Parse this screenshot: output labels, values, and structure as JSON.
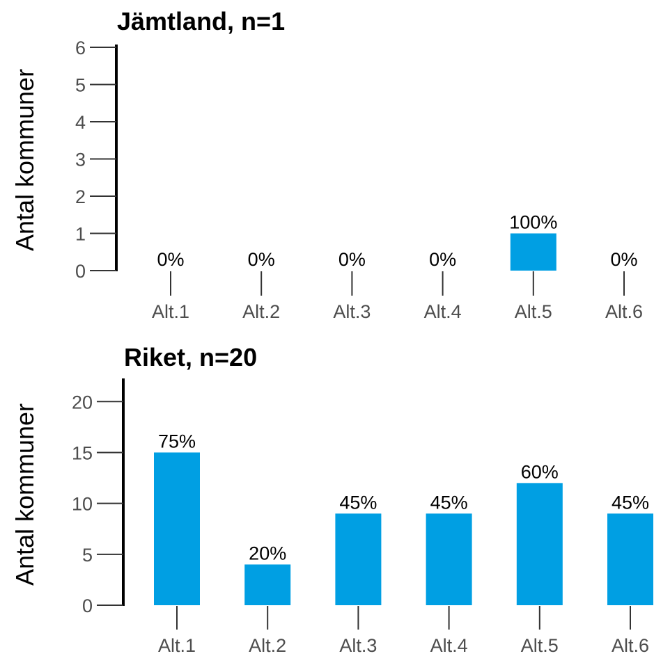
{
  "chart_data": [
    {
      "type": "bar",
      "title": "Jämtland, n=1",
      "ylabel": "Antal kommuner",
      "xlabel": "",
      "categories": [
        "Alt.1",
        "Alt.2",
        "Alt.3",
        "Alt.4",
        "Alt.5",
        "Alt.6"
      ],
      "values": [
        0,
        0,
        0,
        0,
        1,
        0
      ],
      "data_labels": [
        "0%",
        "0%",
        "0%",
        "0%",
        "100%",
        "0%"
      ],
      "ylim": [
        0,
        6
      ],
      "yticks": [
        0,
        1,
        2,
        3,
        4,
        5,
        6
      ],
      "grid": false,
      "legend": "none",
      "bar_color": "#009fe3"
    },
    {
      "type": "bar",
      "title": "Riket, n=20",
      "ylabel": "Antal kommuner",
      "xlabel": "",
      "categories": [
        "Alt.1",
        "Alt.2",
        "Alt.3",
        "Alt.4",
        "Alt.5",
        "Alt.6"
      ],
      "values": [
        15,
        4,
        9,
        9,
        12,
        9
      ],
      "data_labels": [
        "75%",
        "20%",
        "45%",
        "45%",
        "60%",
        "45%"
      ],
      "ylim": [
        0,
        22
      ],
      "yticks": [
        0,
        5,
        10,
        15,
        20
      ],
      "grid": false,
      "legend": "none",
      "bar_color": "#009fe3"
    }
  ]
}
